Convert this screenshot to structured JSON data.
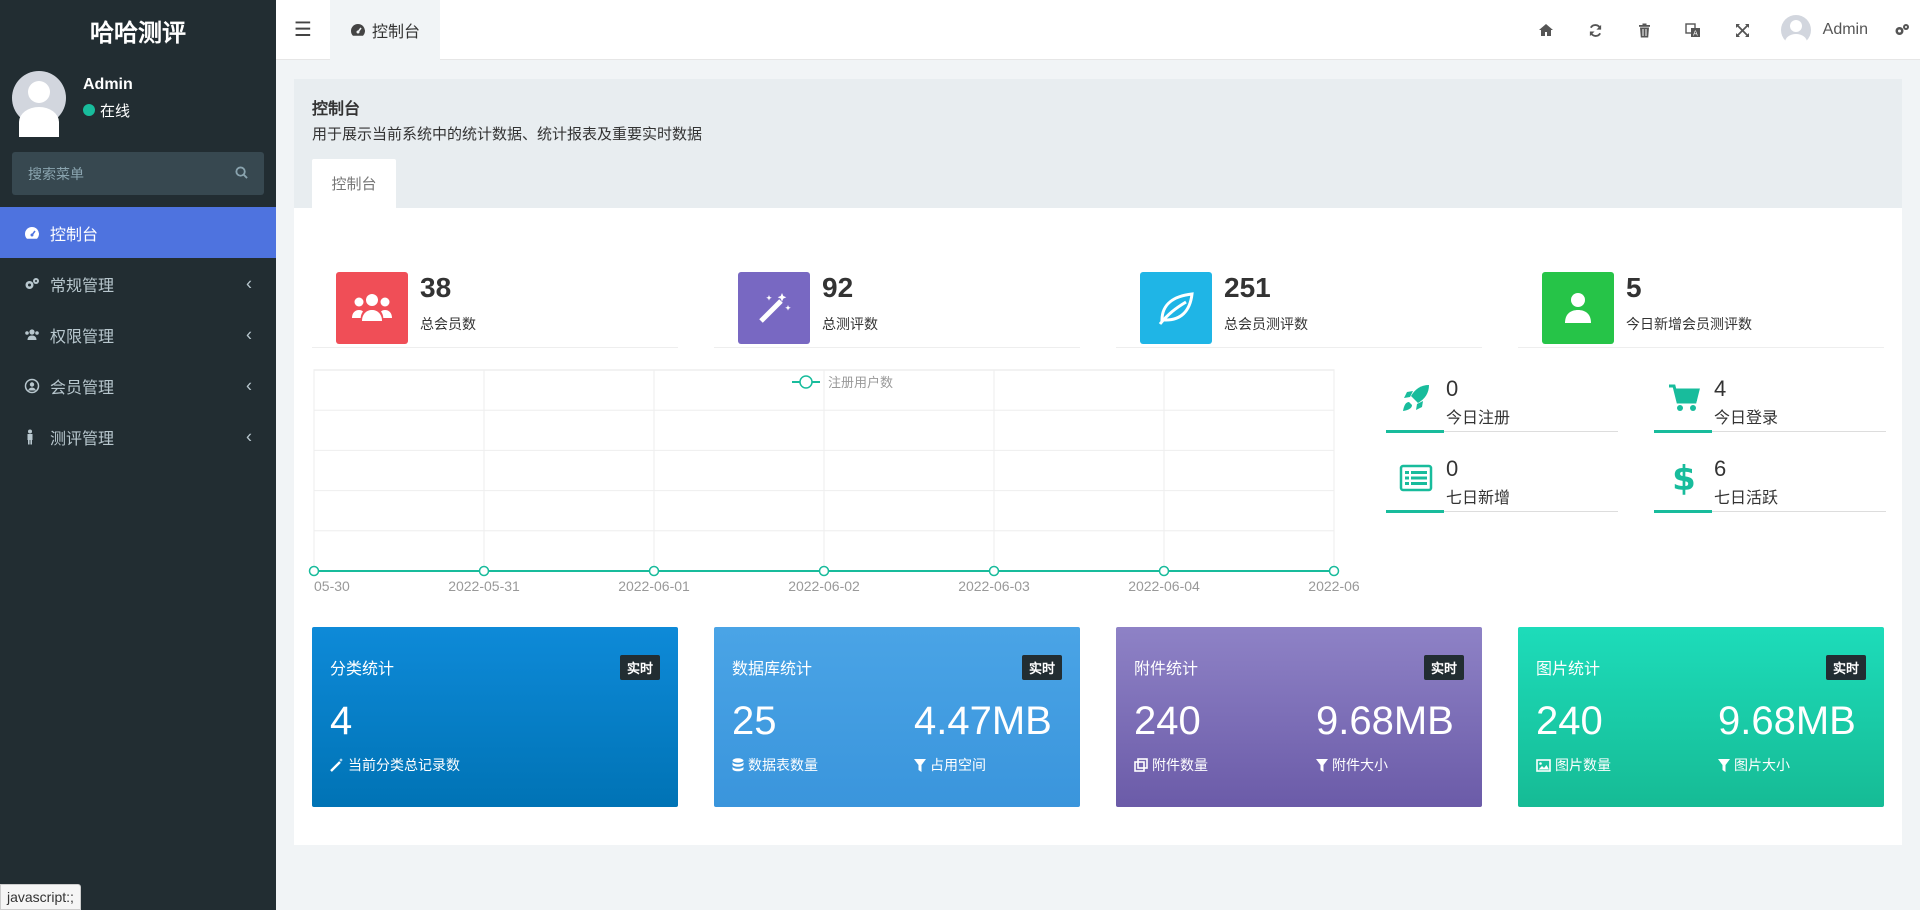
{
  "sidebar": {
    "brand": "哈哈测评",
    "user": {
      "name": "Admin",
      "status": "在线"
    },
    "search": {
      "placeholder": "搜索菜单"
    },
    "items": [
      {
        "label": "控制台",
        "icon": "dashboard-icon",
        "active": true
      },
      {
        "label": "常规管理",
        "icon": "cogs-icon"
      },
      {
        "label": "权限管理",
        "icon": "group-icon"
      },
      {
        "label": "会员管理",
        "icon": "user-circle-icon"
      },
      {
        "label": "测评管理",
        "icon": "male-icon"
      }
    ]
  },
  "topbar": {
    "tab_label": "控制台",
    "user_name": "Admin",
    "icons": [
      "home-icon",
      "refresh-icon",
      "trash-icon",
      "translate-icon",
      "fullscreen-icon",
      "cogs-icon"
    ]
  },
  "header": {
    "title": "控制台",
    "description": "用于展示当前系统中的统计数据、统计报表及重要实时数据",
    "tab": "控制台"
  },
  "stats": [
    {
      "value": "38",
      "label": "总会员数",
      "color": "#f04e57",
      "icon": "users-icon"
    },
    {
      "value": "92",
      "label": "总测评数",
      "color": "#7868c2",
      "icon": "magic-wand-icon"
    },
    {
      "value": "251",
      "label": "总会员测评数",
      "color": "#1fb5e6",
      "icon": "leaf-icon"
    },
    {
      "value": "5",
      "label": "今日新增会员测评数",
      "color": "#26c448",
      "icon": "user-icon"
    }
  ],
  "mini_stats": [
    {
      "value": "0",
      "label": "今日注册",
      "icon": "rocket-icon"
    },
    {
      "value": "4",
      "label": "今日登录",
      "icon": "cart-icon"
    },
    {
      "value": "0",
      "label": "七日新增",
      "icon": "list-icon"
    },
    {
      "value": "6",
      "label": "七日活跃",
      "icon": "dollar-icon"
    }
  ],
  "chart_data": {
    "type": "line",
    "legend": "注册用户数",
    "x_visible": [
      "05-30",
      "2022-05-31",
      "2022-06-01",
      "2022-06-02",
      "2022-06-03",
      "2022-06-04",
      "2022-06"
    ],
    "values": [
      0,
      0,
      0,
      0,
      0,
      0,
      0
    ],
    "color": "#18bc9c"
  },
  "cards": [
    {
      "title": "分类统计",
      "badge": "实时",
      "v1": "4",
      "l1": "当前分类总记录数",
      "i1": "magic-icon"
    },
    {
      "title": "数据库统计",
      "badge": "实时",
      "v1": "25",
      "l1": "数据表数量",
      "i1": "database-icon",
      "v2": "4.47MB",
      "l2": "占用空间",
      "i2": "filter-icon"
    },
    {
      "title": "附件统计",
      "badge": "实时",
      "v1": "240",
      "l1": "附件数量",
      "i1": "files-icon",
      "v2": "9.68MB",
      "l2": "附件大小",
      "i2": "filter-icon"
    },
    {
      "title": "图片统计",
      "badge": "实时",
      "v1": "240",
      "l1": "图片数量",
      "i1": "image-icon",
      "v2": "9.68MB",
      "l2": "图片大小",
      "i2": "filter-icon"
    }
  ],
  "status_tip": "javascript:;"
}
